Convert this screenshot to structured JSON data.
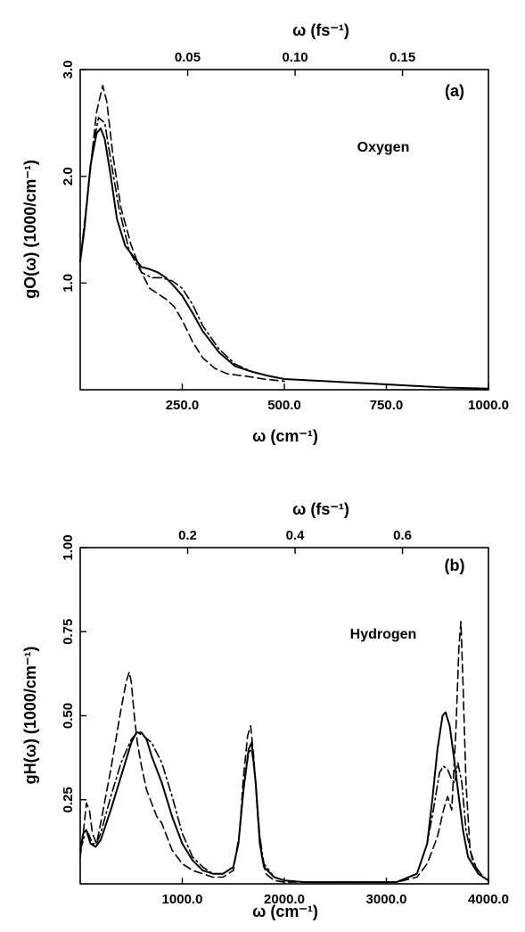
{
  "colors": {
    "ink": "#000000",
    "background": "#ffffff"
  },
  "chart_data": [
    {
      "panel": "(a)",
      "type": "line",
      "annotation": "Oxygen",
      "xlabel": "ω (cm⁻¹)",
      "ylabel": "gO(ω) (1000/cm⁻¹)",
      "x2label": "ω (fs⁻¹)",
      "xlim": [
        0,
        1000
      ],
      "ylim": [
        0,
        3.0
      ],
      "x_ticks": [
        250,
        500,
        750,
        1000
      ],
      "x_tick_labels": [
        "250.0",
        "500.0",
        "750.0",
        "1000.0"
      ],
      "y_ticks": [
        1.0,
        2.0,
        3.0
      ],
      "y_tick_labels": [
        "1.0",
        "2.0",
        "3.0"
      ],
      "x2_ticks": [
        0.05,
        0.1,
        0.15
      ],
      "x2_tick_labels": [
        "0.05",
        "0.10",
        "0.15"
      ],
      "grid": false,
      "series": [
        {
          "style": "solid",
          "x": [
            0,
            10,
            25,
            40,
            50,
            60,
            75,
            90,
            110,
            130,
            150,
            170,
            190,
            210,
            230,
            250,
            275,
            300,
            340,
            380,
            420,
            460,
            500,
            600,
            700,
            800,
            900,
            1000
          ],
          "y": [
            1.2,
            1.5,
            2.1,
            2.4,
            2.45,
            2.35,
            2.0,
            1.6,
            1.35,
            1.25,
            1.15,
            1.13,
            1.1,
            1.05,
            0.97,
            0.88,
            0.72,
            0.55,
            0.35,
            0.22,
            0.17,
            0.13,
            0.1,
            0.08,
            0.06,
            0.04,
            0.02,
            0.01
          ]
        },
        {
          "style": "dashed",
          "x": [
            0,
            20,
            40,
            55,
            65,
            80,
            100,
            125,
            150,
            170,
            190,
            210,
            230,
            250,
            275,
            300,
            330,
            360,
            400,
            450,
            500
          ],
          "y": [
            1.2,
            1.9,
            2.6,
            2.85,
            2.7,
            2.2,
            1.7,
            1.35,
            1.1,
            0.95,
            0.9,
            0.85,
            0.78,
            0.65,
            0.45,
            0.3,
            0.2,
            0.15,
            0.13,
            0.1,
            0.08
          ]
        },
        {
          "style": "dash-dot",
          "x": [
            0,
            15,
            30,
            45,
            60,
            75,
            95,
            120,
            150,
            175,
            200,
            225,
            250,
            275,
            300,
            340,
            380,
            420,
            460,
            500
          ],
          "y": [
            1.2,
            1.7,
            2.25,
            2.55,
            2.5,
            2.15,
            1.7,
            1.3,
            1.1,
            1.05,
            1.05,
            1.02,
            0.95,
            0.8,
            0.6,
            0.38,
            0.24,
            0.17,
            0.13,
            0.1
          ]
        }
      ]
    },
    {
      "panel": "(b)",
      "type": "line",
      "annotation": "Hydrogen",
      "xlabel": "ω (cm⁻¹)",
      "ylabel": "gH(ω) (1000/cm⁻¹)",
      "x2label": "ω (fs⁻¹)",
      "xlim": [
        0,
        4000
      ],
      "ylim": [
        0,
        1.0
      ],
      "x_ticks": [
        1000,
        2000,
        3000,
        4000
      ],
      "x_tick_labels": [
        "1000.0",
        "2000.0",
        "3000.0",
        "4000.0"
      ],
      "y_ticks": [
        0.25,
        0.5,
        0.75,
        1.0
      ],
      "y_tick_labels": [
        "0.25",
        "0.50",
        "0.75",
        "1.00"
      ],
      "x2_ticks": [
        0.2,
        0.4,
        0.6
      ],
      "x2_tick_labels": [
        "0.2",
        "0.4",
        "0.6"
      ],
      "grid": false,
      "series": [
        {
          "style": "solid",
          "x": [
            0,
            30,
            60,
            100,
            150,
            200,
            300,
            400,
            500,
            550,
            600,
            650,
            700,
            800,
            900,
            1000,
            1100,
            1200,
            1300,
            1400,
            1500,
            1550,
            1600,
            1650,
            1680,
            1720,
            1760,
            1800,
            1900,
            2000,
            2200,
            2500,
            2800,
            3100,
            3300,
            3400,
            3450,
            3500,
            3550,
            3580,
            3620,
            3660,
            3700,
            3750,
            3800,
            3900,
            4000
          ],
          "y": [
            0.1,
            0.15,
            0.16,
            0.12,
            0.11,
            0.13,
            0.22,
            0.32,
            0.42,
            0.45,
            0.45,
            0.43,
            0.38,
            0.3,
            0.2,
            0.12,
            0.07,
            0.04,
            0.03,
            0.03,
            0.05,
            0.12,
            0.28,
            0.4,
            0.42,
            0.3,
            0.12,
            0.05,
            0.02,
            0.01,
            0.005,
            0.005,
            0.005,
            0.005,
            0.03,
            0.12,
            0.25,
            0.4,
            0.5,
            0.51,
            0.47,
            0.38,
            0.28,
            0.16,
            0.08,
            0.03,
            0.01
          ]
        },
        {
          "style": "dashed",
          "x": [
            0,
            30,
            60,
            90,
            120,
            160,
            200,
            300,
            400,
            450,
            480,
            500,
            530,
            560,
            600,
            650,
            700,
            750,
            800,
            850,
            900,
            1000,
            1100,
            1200,
            1300,
            1400,
            1500,
            1560,
            1600,
            1640,
            1670,
            1700,
            1740,
            1780,
            1820,
            1900,
            2000,
            2200,
            2500,
            2800,
            3100,
            3300,
            3400,
            3500,
            3560,
            3600,
            3640,
            3680,
            3710,
            3730,
            3750,
            3780,
            3820,
            3900,
            4000
          ],
          "y": [
            0.08,
            0.15,
            0.24,
            0.22,
            0.15,
            0.12,
            0.18,
            0.34,
            0.52,
            0.6,
            0.63,
            0.6,
            0.5,
            0.42,
            0.35,
            0.28,
            0.24,
            0.2,
            0.18,
            0.14,
            0.1,
            0.06,
            0.04,
            0.03,
            0.02,
            0.02,
            0.04,
            0.15,
            0.32,
            0.44,
            0.47,
            0.38,
            0.2,
            0.08,
            0.03,
            0.01,
            0.005,
            0.005,
            0.005,
            0.005,
            0.005,
            0.02,
            0.06,
            0.14,
            0.22,
            0.26,
            0.22,
            0.45,
            0.7,
            0.78,
            0.6,
            0.3,
            0.1,
            0.03,
            0.01
          ]
        },
        {
          "style": "dash-dot",
          "x": [
            0,
            40,
            80,
            120,
            160,
            200,
            300,
            400,
            500,
            560,
            620,
            700,
            800,
            900,
            1000,
            1100,
            1200,
            1300,
            1400,
            1500,
            1550,
            1600,
            1650,
            1680,
            1720,
            1760,
            1800,
            1900,
            2000,
            2200,
            2500,
            2800,
            3100,
            3300,
            3400,
            3460,
            3520,
            3560,
            3600,
            3640,
            3670,
            3700,
            3740,
            3780,
            3850,
            3950,
            4000
          ],
          "y": [
            0.1,
            0.14,
            0.15,
            0.12,
            0.12,
            0.15,
            0.26,
            0.36,
            0.43,
            0.45,
            0.44,
            0.42,
            0.36,
            0.26,
            0.15,
            0.08,
            0.05,
            0.03,
            0.03,
            0.05,
            0.12,
            0.28,
            0.39,
            0.4,
            0.3,
            0.14,
            0.06,
            0.02,
            0.01,
            0.005,
            0.005,
            0.005,
            0.005,
            0.03,
            0.12,
            0.22,
            0.33,
            0.35,
            0.34,
            0.31,
            0.3,
            0.36,
            0.3,
            0.16,
            0.06,
            0.02,
            0.01
          ]
        }
      ]
    }
  ]
}
